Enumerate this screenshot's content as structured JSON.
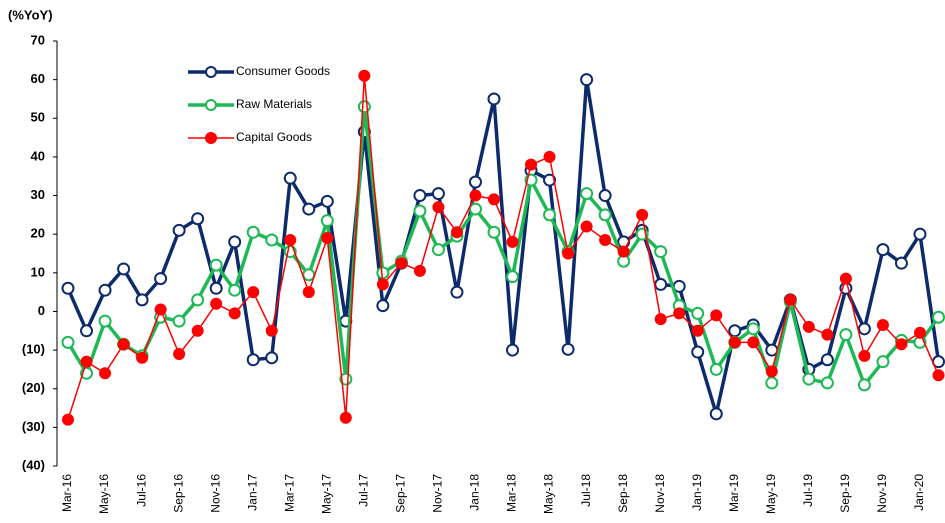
{
  "chart_data": {
    "type": "line",
    "y_label": "(%YoY)",
    "categories": [
      "Mar-16",
      null,
      "May-16",
      null,
      "Jul-16",
      null,
      "Sep-16",
      null,
      "Nov-16",
      null,
      "Jan-17",
      null,
      "Mar-17",
      null,
      "May-17",
      null,
      "Jul-17",
      null,
      "Sep-17",
      null,
      "Nov-17",
      null,
      "Jan-18",
      null,
      "Mar-18",
      null,
      "May-18",
      null,
      "Jul-18",
      null,
      "Sep-18",
      null,
      "Nov-18",
      null,
      "Jan-19",
      null,
      "Mar-19",
      null,
      "May-19",
      null,
      "Jul-19",
      null,
      "Sep-19",
      null,
      "Nov-19",
      null,
      "Jan-20",
      null
    ],
    "series": [
      {
        "name": "Consumer Goods",
        "color": "#0d2a6b",
        "marker": "open",
        "values": [
          6,
          -5,
          5.5,
          11,
          3,
          8.5,
          21,
          24,
          6,
          18,
          -12.5,
          -12,
          34.5,
          26.5,
          28.5,
          -2.5,
          46.5,
          1.5,
          12.5,
          30,
          30.5,
          5,
          33.5,
          55,
          -10,
          36.5,
          34,
          -9.8,
          60,
          30,
          18,
          21,
          7,
          6.5,
          -10.5,
          -26.5,
          -5,
          -3.5,
          -10,
          3,
          -15,
          -12.5,
          6,
          -4.5,
          16,
          12.5,
          20,
          -13
        ]
      },
      {
        "name": "Raw Materials",
        "color": "#1db954",
        "marker": "open",
        "values": [
          -8,
          -16,
          -2.5,
          -8.5,
          -11.5,
          -1.5,
          -2.5,
          3,
          12,
          5.5,
          20.5,
          18.5,
          15.5,
          9.5,
          23.5,
          -17.5,
          53,
          10,
          13,
          26,
          16,
          19.5,
          26.5,
          20.5,
          9,
          34,
          25,
          15.5,
          30.5,
          25,
          13,
          20,
          15.5,
          1.5,
          -0.5,
          -15,
          -8,
          -4.5,
          -18.5,
          2.5,
          -17.5,
          -18.5,
          -6,
          -19,
          -13,
          -7.5,
          -8,
          -1.5
        ]
      },
      {
        "name": "Capital Goods",
        "color": "#ff0000",
        "marker": "filled",
        "values": [
          -28,
          -13,
          -16,
          -8.5,
          -12,
          0.5,
          -11,
          -5,
          2,
          -0.5,
          5,
          -5,
          18.5,
          5,
          19,
          -27.5,
          61,
          7,
          12.5,
          10.5,
          27,
          20.5,
          30,
          29,
          18,
          38,
          40,
          15,
          22,
          18.5,
          15.5,
          25,
          -2,
          -0.5,
          -5,
          -1,
          -8,
          -8,
          -15.5,
          3,
          -4,
          -6,
          8.5,
          -11.5,
          -3.5,
          -8.5,
          -5.5,
          -16.5
        ]
      }
    ],
    "ylim": [
      -40,
      70
    ],
    "yticks": [
      {
        "value": -40,
        "label": "(40)"
      },
      {
        "value": -30,
        "label": "(30)"
      },
      {
        "value": -20,
        "label": "(20)"
      },
      {
        "value": -10,
        "label": "(10)"
      },
      0,
      10,
      20,
      30,
      40,
      50,
      60,
      70
    ],
    "grid": false,
    "legend": "upper left"
  }
}
